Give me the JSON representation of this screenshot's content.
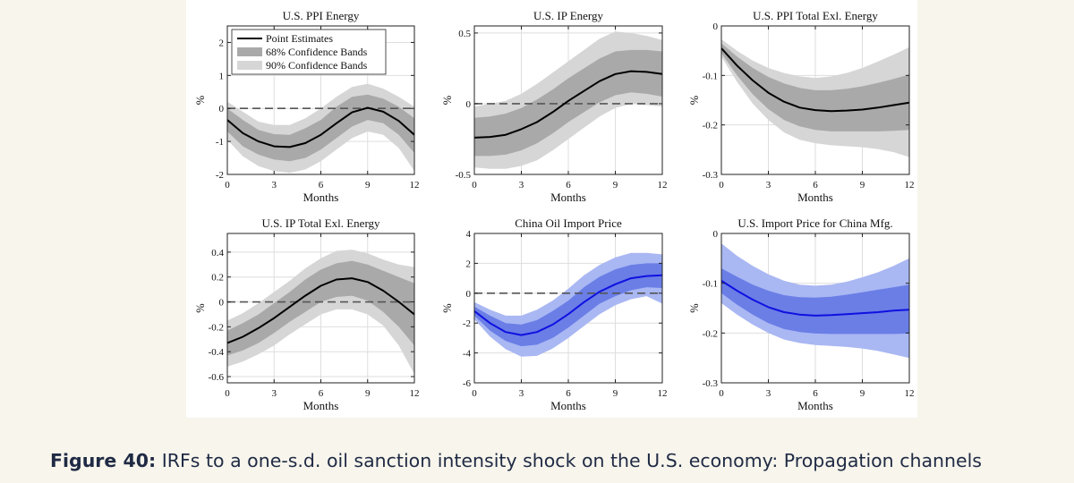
{
  "figure": {
    "caption_label": "Figure 40:",
    "caption_text": "IRFs to a one-s.d. oil sanction intensity shock on the U.S. economy: Propagation channels"
  },
  "colors": {
    "black_line": "#000000",
    "black_band68": "#a9a9a9",
    "black_band90": "#d6d6d6",
    "blue_line": "#1010e0",
    "blue_band68": "#6a7ee6",
    "blue_band90": "#a9b7f3",
    "zero_line": "#555555"
  },
  "legend": {
    "point": "Point Estimates",
    "band68": "68% Confidence Bands",
    "band90": "90% Confidence Bands"
  },
  "chart_data": [
    {
      "type": "line",
      "title": "U.S. PPI Energy",
      "xlabel": "Months",
      "ylabel": "%",
      "color": "black",
      "legend": true,
      "x": [
        0,
        1,
        2,
        3,
        4,
        5,
        6,
        7,
        8,
        9,
        10,
        11,
        12
      ],
      "xticks": [
        0,
        3,
        6,
        9,
        12
      ],
      "xtick_labels": [
        "0",
        "3",
        "6",
        "9",
        "12"
      ],
      "ylim": [
        -2,
        2.5
      ],
      "yticks": [
        -2,
        -1,
        0,
        1,
        2
      ],
      "ytick_labels": [
        "-2",
        "-1",
        "0",
        "1",
        "2"
      ],
      "estimate": [
        -0.35,
        -0.75,
        -1.0,
        -1.15,
        -1.17,
        -1.05,
        -0.8,
        -0.45,
        -0.12,
        0.02,
        -0.1,
        -0.38,
        -0.8
      ],
      "band68": {
        "lower": [
          -0.7,
          -1.15,
          -1.4,
          -1.55,
          -1.6,
          -1.5,
          -1.25,
          -0.9,
          -0.55,
          -0.35,
          -0.45,
          -0.8,
          -1.35
        ],
        "upper": [
          0.0,
          -0.35,
          -0.65,
          -0.78,
          -0.8,
          -0.6,
          -0.35,
          0.05,
          0.35,
          0.42,
          0.3,
          0.05,
          -0.3
        ]
      },
      "band90": {
        "lower": [
          -0.95,
          -1.45,
          -1.75,
          -1.9,
          -1.95,
          -1.85,
          -1.6,
          -1.25,
          -0.9,
          -0.7,
          -0.8,
          -1.2,
          -1.9
        ],
        "upper": [
          0.2,
          -0.1,
          -0.4,
          -0.5,
          -0.5,
          -0.3,
          0.0,
          0.35,
          0.65,
          0.75,
          0.6,
          0.35,
          0.05
        ]
      }
    },
    {
      "type": "line",
      "title": "U.S. IP Energy",
      "xlabel": "Months",
      "ylabel": "%",
      "color": "black",
      "legend": false,
      "x": [
        0,
        1,
        2,
        3,
        4,
        5,
        6,
        7,
        8,
        9,
        10,
        11,
        12
      ],
      "xticks": [
        0,
        3,
        6,
        9,
        12
      ],
      "xtick_labels": [
        "0",
        "3",
        "6",
        "9",
        "12"
      ],
      "ylim": [
        -0.5,
        0.55
      ],
      "yticks": [
        -0.5,
        0,
        0.5
      ],
      "ytick_labels": [
        "-0.5",
        "0",
        "0.5"
      ],
      "estimate": [
        -0.24,
        -0.235,
        -0.22,
        -0.18,
        -0.13,
        -0.06,
        0.02,
        0.09,
        0.16,
        0.21,
        0.23,
        0.225,
        0.21
      ],
      "band68": {
        "lower": [
          -0.37,
          -0.37,
          -0.36,
          -0.33,
          -0.28,
          -0.21,
          -0.13,
          -0.06,
          0.01,
          0.06,
          0.08,
          0.07,
          0.05
        ],
        "upper": [
          -0.1,
          -0.09,
          -0.07,
          -0.03,
          0.03,
          0.1,
          0.18,
          0.25,
          0.32,
          0.37,
          0.38,
          0.38,
          0.37
        ]
      },
      "band90": {
        "lower": [
          -0.45,
          -0.46,
          -0.46,
          -0.44,
          -0.4,
          -0.33,
          -0.25,
          -0.17,
          -0.09,
          -0.03,
          0.0,
          -0.01,
          -0.02
        ],
        "upper": [
          -0.02,
          0.0,
          0.02,
          0.07,
          0.14,
          0.22,
          0.3,
          0.38,
          0.46,
          0.51,
          0.5,
          0.48,
          0.45
        ]
      }
    },
    {
      "type": "line",
      "title": "U.S. PPI Total Exl. Energy",
      "xlabel": "Months",
      "ylabel": "%",
      "color": "black",
      "legend": false,
      "x": [
        0,
        1,
        2,
        3,
        4,
        5,
        6,
        7,
        8,
        9,
        10,
        11,
        12
      ],
      "xticks": [
        0,
        3,
        6,
        9,
        12
      ],
      "xtick_labels": [
        "0",
        "3",
        "6",
        "9",
        "12"
      ],
      "ylim": [
        -0.3,
        0
      ],
      "yticks": [
        -0.3,
        -0.2,
        -0.1,
        0
      ],
      "ytick_labels": [
        "-0.3",
        "-0.2",
        "-0.1",
        "0"
      ],
      "estimate": [
        -0.045,
        -0.08,
        -0.11,
        -0.135,
        -0.153,
        -0.165,
        -0.17,
        -0.172,
        -0.171,
        -0.169,
        -0.165,
        -0.16,
        -0.155
      ],
      "band68": {
        "lower": [
          -0.055,
          -0.1,
          -0.138,
          -0.168,
          -0.19,
          -0.203,
          -0.21,
          -0.213,
          -0.213,
          -0.213,
          -0.213,
          -0.212,
          -0.21
        ],
        "upper": [
          -0.035,
          -0.062,
          -0.085,
          -0.103,
          -0.116,
          -0.125,
          -0.13,
          -0.13,
          -0.127,
          -0.122,
          -0.115,
          -0.107,
          -0.098
        ]
      },
      "band90": {
        "lower": [
          -0.062,
          -0.113,
          -0.157,
          -0.19,
          -0.215,
          -0.23,
          -0.237,
          -0.241,
          -0.243,
          -0.245,
          -0.249,
          -0.255,
          -0.265
        ],
        "upper": [
          -0.027,
          -0.05,
          -0.07,
          -0.085,
          -0.095,
          -0.102,
          -0.105,
          -0.102,
          -0.095,
          -0.085,
          -0.072,
          -0.058,
          -0.043
        ]
      }
    },
    {
      "type": "line",
      "title": "U.S. IP Total Exl. Energy",
      "xlabel": "Months",
      "ylabel": "%",
      "color": "black",
      "legend": false,
      "x": [
        0,
        1,
        2,
        3,
        4,
        5,
        6,
        7,
        8,
        9,
        10,
        11,
        12
      ],
      "xticks": [
        0,
        3,
        6,
        9,
        12
      ],
      "xtick_labels": [
        "0",
        "3",
        "6",
        "9",
        "12"
      ],
      "ylim": [
        -0.65,
        0.55
      ],
      "yticks": [
        -0.6,
        -0.4,
        -0.2,
        0,
        0.2,
        0.4
      ],
      "ytick_labels": [
        "-0.6",
        "-0.4",
        "-0.2",
        "0",
        "0.2",
        "0.4"
      ],
      "estimate": [
        -0.33,
        -0.28,
        -0.21,
        -0.13,
        -0.04,
        0.05,
        0.13,
        0.18,
        0.19,
        0.16,
        0.09,
        0.0,
        -0.1
      ],
      "band68": {
        "lower": [
          -0.43,
          -0.39,
          -0.33,
          -0.25,
          -0.16,
          -0.08,
          0.0,
          0.04,
          0.05,
          0.01,
          -0.08,
          -0.2,
          -0.35
        ],
        "upper": [
          -0.23,
          -0.17,
          -0.1,
          -0.01,
          0.08,
          0.18,
          0.26,
          0.31,
          0.33,
          0.3,
          0.25,
          0.2,
          0.15
        ]
      },
      "band90": {
        "lower": [
          -0.52,
          -0.48,
          -0.42,
          -0.35,
          -0.26,
          -0.18,
          -0.1,
          -0.06,
          -0.06,
          -0.1,
          -0.19,
          -0.35,
          -0.58
        ],
        "upper": [
          -0.15,
          -0.09,
          -0.01,
          0.08,
          0.17,
          0.27,
          0.35,
          0.41,
          0.42,
          0.39,
          0.34,
          0.3,
          0.28
        ]
      }
    },
    {
      "type": "line",
      "title": "China Oil Import Price",
      "xlabel": "Months",
      "ylabel": "%",
      "color": "blue",
      "legend": false,
      "x": [
        0,
        1,
        2,
        3,
        4,
        5,
        6,
        7,
        8,
        9,
        10,
        11,
        12
      ],
      "xticks": [
        0,
        3,
        6,
        9,
        12
      ],
      "xtick_labels": [
        "0",
        "3",
        "6",
        "9",
        "12"
      ],
      "ylim": [
        -6,
        4
      ],
      "yticks": [
        -6,
        -4,
        -2,
        0,
        2,
        4
      ],
      "ytick_labels": [
        "-6",
        "-4",
        "-2",
        "0",
        "2",
        "4"
      ],
      "estimate": [
        -1.2,
        -2.0,
        -2.6,
        -2.8,
        -2.6,
        -2.1,
        -1.4,
        -0.6,
        0.1,
        0.6,
        1.0,
        1.15,
        1.2
      ],
      "band68": {
        "lower": [
          -1.5,
          -2.5,
          -3.2,
          -3.55,
          -3.45,
          -3.0,
          -2.3,
          -1.5,
          -0.7,
          -0.2,
          0.2,
          0.4,
          0.35
        ],
        "upper": [
          -0.9,
          -1.5,
          -2.0,
          -2.1,
          -1.8,
          -1.2,
          -0.5,
          0.4,
          1.1,
          1.6,
          1.9,
          2.0,
          2.0
        ]
      },
      "band90": {
        "lower": [
          -1.75,
          -2.9,
          -3.75,
          -4.25,
          -4.2,
          -3.7,
          -3.0,
          -2.2,
          -1.4,
          -0.8,
          -0.4,
          -0.2,
          -0.7
        ],
        "upper": [
          -0.6,
          -1.1,
          -1.5,
          -1.5,
          -1.1,
          -0.5,
          0.3,
          1.2,
          1.9,
          2.4,
          2.7,
          2.7,
          2.6
        ]
      }
    },
    {
      "type": "line",
      "title": "U.S. Import Price for China Mfg.",
      "xlabel": "Months",
      "ylabel": "%",
      "color": "blue",
      "legend": false,
      "x": [
        0,
        1,
        2,
        3,
        4,
        5,
        6,
        7,
        8,
        9,
        10,
        11,
        12
      ],
      "xticks": [
        0,
        3,
        6,
        9,
        12
      ],
      "xtick_labels": [
        "0",
        "3",
        "6",
        "9",
        "12"
      ],
      "ylim": [
        -0.3,
        0
      ],
      "yticks": [
        -0.3,
        -0.2,
        -0.1,
        0
      ],
      "ytick_labels": [
        "-0.3",
        "-0.2",
        "-0.1",
        "0"
      ],
      "estimate": [
        -0.095,
        -0.115,
        -0.133,
        -0.148,
        -0.158,
        -0.163,
        -0.165,
        -0.164,
        -0.162,
        -0.16,
        -0.158,
        -0.155,
        -0.153
      ],
      "band68": {
        "lower": [
          -0.12,
          -0.143,
          -0.163,
          -0.18,
          -0.192,
          -0.198,
          -0.201,
          -0.202,
          -0.202,
          -0.202,
          -0.202,
          -0.202,
          -0.201
        ],
        "upper": [
          -0.07,
          -0.087,
          -0.103,
          -0.115,
          -0.124,
          -0.128,
          -0.129,
          -0.127,
          -0.123,
          -0.118,
          -0.113,
          -0.108,
          -0.103
        ]
      },
      "band90": {
        "lower": [
          -0.14,
          -0.163,
          -0.183,
          -0.2,
          -0.213,
          -0.22,
          -0.224,
          -0.226,
          -0.228,
          -0.231,
          -0.236,
          -0.243,
          -0.25
        ],
        "upper": [
          -0.02,
          -0.045,
          -0.065,
          -0.082,
          -0.095,
          -0.103,
          -0.105,
          -0.103,
          -0.097,
          -0.088,
          -0.078,
          -0.065,
          -0.05
        ]
      }
    }
  ]
}
